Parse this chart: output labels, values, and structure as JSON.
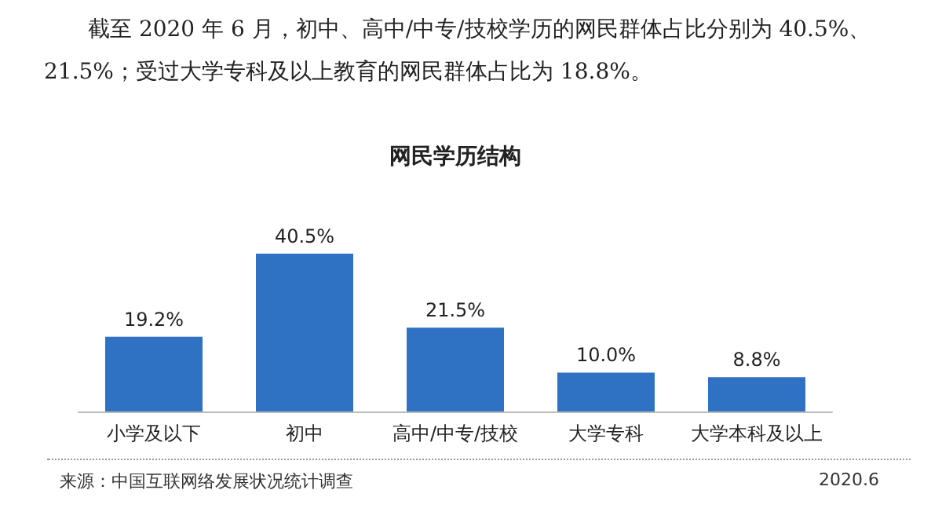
{
  "chart_data": {
    "type": "bar",
    "title": "网民学历结构",
    "categories": [
      "小学及以下",
      "初中",
      "高中/中专/技校",
      "大学专科",
      "大学本科及以上"
    ],
    "values": [
      19.2,
      40.5,
      21.5,
      10.0,
      8.8
    ],
    "value_labels": [
      "19.2%",
      "40.5%",
      "21.5%",
      "10.0%",
      "8.8%"
    ],
    "color": "#2f72c4",
    "tick_labels": "x",
    "annotations": [
      "截至 2020 年 6 月，初中、高中/中专/技校学历的网民群体占比分别为 40.5%、21.5%；受过大学专科及以上教育的网民群体占比为 18.8%。",
      "来源：中国互联网络发展状况统计调查",
      "2020.6"
    ]
  }
}
